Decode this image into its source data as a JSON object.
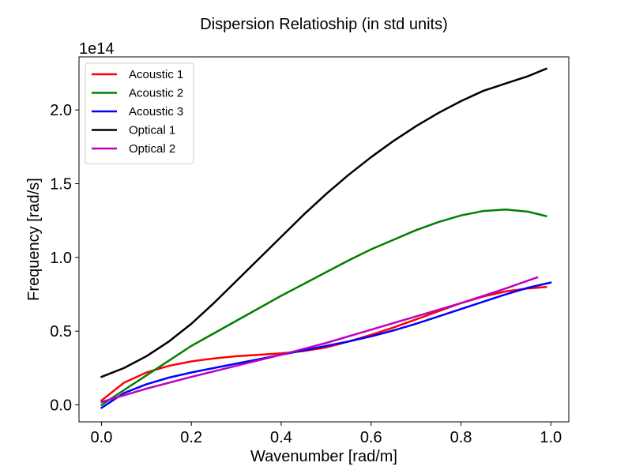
{
  "chart_data": {
    "type": "line",
    "title": "Dispersion Relatioship (in std units)",
    "xlabel": "Wavenumber [rad/m]",
    "ylabel": "Frequency [rad/s]",
    "y_offset_text": "1e14",
    "xlim": [
      -0.05,
      1.04
    ],
    "ylim": [
      -0.115,
      2.36
    ],
    "y_scale_factor": 100000000000000.0,
    "xticks": [
      0.0,
      0.2,
      0.4,
      0.6,
      0.8,
      1.0
    ],
    "xtick_labels": [
      "0.0",
      "0.2",
      "0.4",
      "0.6",
      "0.8",
      "1.0"
    ],
    "yticks": [
      0.0,
      0.5,
      1.0,
      1.5,
      2.0
    ],
    "ytick_labels": [
      "0.0",
      "0.5",
      "1.0",
      "1.5",
      "2.0"
    ],
    "grid": false,
    "legend_position": "top-left",
    "series": [
      {
        "name": "Acoustic 1",
        "color": "#ff0000",
        "x": [
          0.0,
          0.05,
          0.1,
          0.15,
          0.2,
          0.25,
          0.3,
          0.35,
          0.4,
          0.45,
          0.5,
          0.55,
          0.6,
          0.65,
          0.7,
          0.75,
          0.8,
          0.85,
          0.9,
          0.95,
          0.99
        ],
        "y": [
          0.03,
          0.15,
          0.22,
          0.265,
          0.295,
          0.315,
          0.33,
          0.34,
          0.35,
          0.365,
          0.39,
          0.43,
          0.475,
          0.525,
          0.58,
          0.635,
          0.69,
          0.735,
          0.77,
          0.79,
          0.8
        ]
      },
      {
        "name": "Acoustic 2",
        "color": "#008000",
        "x": [
          0.0,
          0.05,
          0.1,
          0.15,
          0.2,
          0.25,
          0.3,
          0.35,
          0.4,
          0.45,
          0.5,
          0.55,
          0.6,
          0.65,
          0.7,
          0.75,
          0.8,
          0.85,
          0.9,
          0.95,
          0.99
        ],
        "y": [
          0.0,
          0.1,
          0.2,
          0.3,
          0.4,
          0.485,
          0.57,
          0.655,
          0.74,
          0.82,
          0.9,
          0.98,
          1.055,
          1.12,
          1.185,
          1.24,
          1.285,
          1.315,
          1.325,
          1.31,
          1.28
        ]
      },
      {
        "name": "Acoustic 3",
        "color": "#0000ff",
        "x": [
          0.0,
          0.05,
          0.1,
          0.15,
          0.2,
          0.25,
          0.3,
          0.35,
          0.4,
          0.45,
          0.5,
          0.55,
          0.6,
          0.65,
          0.7,
          0.75,
          0.8,
          0.85,
          0.9,
          0.95,
          1.0
        ],
        "y": [
          -0.02,
          0.08,
          0.14,
          0.185,
          0.22,
          0.25,
          0.28,
          0.31,
          0.34,
          0.37,
          0.4,
          0.43,
          0.465,
          0.505,
          0.55,
          0.6,
          0.65,
          0.7,
          0.75,
          0.795,
          0.83
        ]
      },
      {
        "name": "Optical 1",
        "color": "#000000",
        "x": [
          0.0,
          0.05,
          0.1,
          0.15,
          0.2,
          0.25,
          0.3,
          0.35,
          0.4,
          0.45,
          0.5,
          0.55,
          0.6,
          0.65,
          0.7,
          0.75,
          0.8,
          0.85,
          0.9,
          0.95,
          0.99
        ],
        "y": [
          0.19,
          0.25,
          0.33,
          0.43,
          0.55,
          0.69,
          0.84,
          0.99,
          1.14,
          1.29,
          1.43,
          1.56,
          1.68,
          1.79,
          1.89,
          1.98,
          2.06,
          2.13,
          2.18,
          2.23,
          2.28
        ]
      },
      {
        "name": "Optical 2",
        "color": "#bf00bf",
        "x": [
          0.0,
          0.1,
          0.2,
          0.3,
          0.4,
          0.5,
          0.6,
          0.7,
          0.8,
          0.9,
          0.97
        ],
        "y": [
          0.02,
          0.11,
          0.19,
          0.265,
          0.34,
          0.42,
          0.51,
          0.6,
          0.69,
          0.79,
          0.865
        ]
      }
    ]
  }
}
